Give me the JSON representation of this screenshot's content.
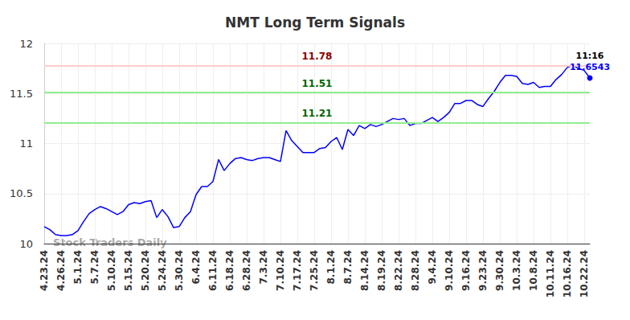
{
  "chart_data": {
    "type": "line",
    "title": "NMT Long Term Signals",
    "color": "#0000ff",
    "grid": true,
    "categories": [
      "4.23.24",
      null,
      null,
      "4.26.24",
      null,
      null,
      "5.1.24",
      null,
      null,
      "5.7.24",
      null,
      null,
      "5.10.24",
      null,
      null,
      "5.15.24",
      null,
      null,
      "5.20.24",
      null,
      null,
      "5.24.24",
      null,
      null,
      "5.30.24",
      null,
      null,
      "6.4.24",
      null,
      null,
      "6.11.24",
      null,
      null,
      "6.18.24",
      null,
      null,
      "6.28.24",
      null,
      null,
      "7.3.24",
      null,
      null,
      "7.10.24",
      null,
      null,
      "7.17.24",
      null,
      null,
      "7.25.24",
      null,
      null,
      "8.1.24",
      null,
      null,
      "8.7.24",
      null,
      null,
      "8.14.24",
      null,
      null,
      "8.19.24",
      null,
      null,
      "8.22.24",
      null,
      null,
      "8.28.24",
      null,
      null,
      "9.4.24",
      null,
      null,
      "9.10.24",
      null,
      null,
      "9.16.24",
      null,
      null,
      "9.23.24",
      null,
      null,
      "9.30.24",
      null,
      null,
      "10.3.24",
      null,
      null,
      "10.8.24",
      null,
      null,
      "10.11.24",
      null,
      null,
      "10.16.24",
      null,
      null,
      "10.22.24",
      null
    ],
    "values": [
      10.17,
      10.14,
      10.09,
      10.08,
      10.08,
      10.09,
      10.13,
      10.22,
      10.3,
      10.34,
      10.37,
      10.35,
      10.32,
      10.29,
      10.32,
      10.39,
      10.41,
      10.4,
      10.42,
      10.43,
      10.26,
      10.34,
      10.27,
      10.16,
      10.17,
      10.26,
      10.32,
      10.49,
      10.57,
      10.57,
      10.62,
      10.84,
      10.73,
      10.8,
      10.85,
      10.86,
      10.84,
      10.83,
      10.85,
      10.86,
      10.86,
      10.84,
      10.82,
      11.13,
      11.03,
      10.97,
      10.91,
      10.91,
      10.91,
      10.95,
      10.96,
      11.02,
      11.06,
      10.94,
      11.14,
      11.08,
      11.18,
      11.15,
      11.19,
      11.17,
      11.19,
      11.22,
      11.25,
      11.24,
      11.25,
      11.18,
      11.2,
      11.2,
      11.23,
      11.26,
      11.22,
      11.26,
      11.31,
      11.4,
      11.4,
      11.43,
      11.43,
      11.39,
      11.37,
      11.45,
      11.52,
      11.61,
      11.68,
      11.68,
      11.67,
      11.6,
      11.59,
      11.61,
      11.56,
      11.57,
      11.57,
      11.64,
      11.69,
      11.76,
      11.78,
      11.75,
      11.73,
      11.6543
    ],
    "ylim": [
      10,
      12
    ],
    "yticks": [
      10,
      10.5,
      11,
      11.5,
      12
    ],
    "reference_lines": [
      {
        "value": 11.78,
        "label": "11.78",
        "color": "#ffcccc",
        "label_color": "#8b0000"
      },
      {
        "value": 11.51,
        "label": "11.51",
        "color": "#90ee90",
        "label_color": "#006400"
      },
      {
        "value": 11.21,
        "label": "11.21",
        "color": "#90ee90",
        "label_color": "#006400"
      }
    ],
    "last_point": {
      "time_label": "11:16",
      "value_label": "11.6543",
      "value": 11.6543,
      "color": "#0000ff"
    },
    "watermark": "Stock Traders Daily"
  }
}
